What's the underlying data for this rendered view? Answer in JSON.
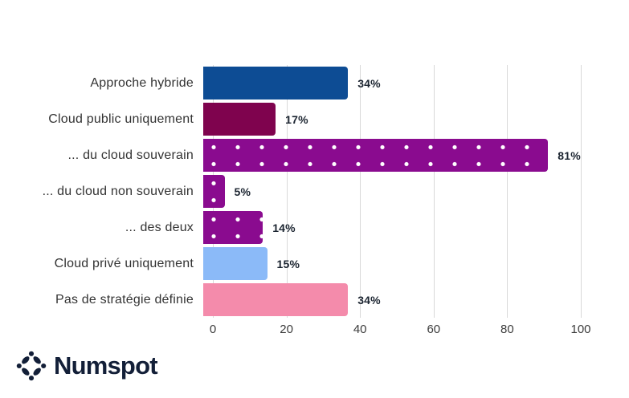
{
  "chart_data": {
    "type": "bar",
    "orientation": "horizontal",
    "title": "",
    "categories": [
      "Approche hybride",
      "Cloud public uniquement",
      "... du cloud souverain",
      "... du cloud non souverain",
      "... des deux",
      "Cloud privé uniquement",
      "Pas de stratégie définie"
    ],
    "values": [
      34,
      17,
      81,
      5,
      14,
      15,
      34
    ],
    "value_labels": [
      "34%",
      "17%",
      "81%",
      "5%",
      "14%",
      "15%",
      "34%"
    ],
    "bar_colors": [
      "#0d4c94",
      "#7f034e",
      "#8a0b8f",
      "#8a0b8f",
      "#8a0b8f",
      "#8bbaf8",
      "#f48bab"
    ],
    "bar_patterns": [
      "solid",
      "solid",
      "dots",
      "dots",
      "dots",
      "solid",
      "solid"
    ],
    "xlabel": "",
    "ylabel": "",
    "xlim": [
      0,
      100
    ],
    "x_ticks": [
      "0",
      "20",
      "40",
      "60",
      "80",
      "100"
    ],
    "grid": "vertical-only",
    "grid_color": "#d9d9d9",
    "legend": "none",
    "dot_pattern_color": "#ffffff"
  },
  "branding": {
    "logo_text": "Numspot",
    "logo_color": "#131f38",
    "logo_icon": "asterisk-dots-icon"
  }
}
